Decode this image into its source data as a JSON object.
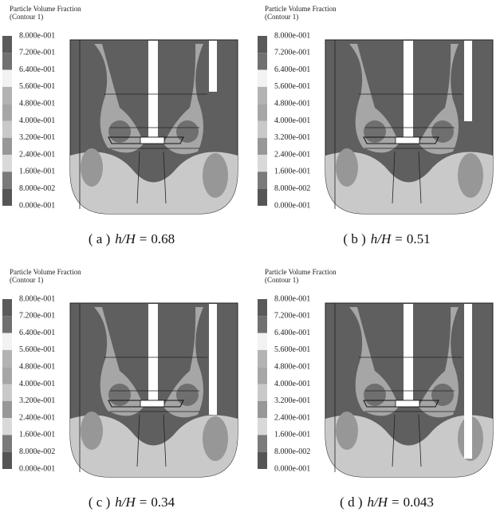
{
  "panels": [
    {
      "title": "Particle Volume Fraction",
      "subtitle": "(Contour 1)",
      "legend": [
        "8.000e-001",
        "7.200e-001",
        "6.400e-001",
        "5.600e-001",
        "4.800e-001",
        "4.000e-001",
        "3.200e-001",
        "2.400e-001",
        "1.600e-001",
        "8.000e-002",
        "0.000e-001"
      ],
      "caption": {
        "letter": "( a )",
        "variable": "h/H",
        "operator": "=",
        "value": 0.68
      }
    },
    {
      "title": "Particle Volume Fraction",
      "subtitle": "(Contour 1)",
      "legend": [
        "8.000e-001",
        "7.200e-001",
        "6.400e-001",
        "5.600e-001",
        "4.800e-001",
        "4.000e-001",
        "3.200e-001",
        "2.400e-001",
        "1.600e-001",
        "8.000e-002",
        "0.000e-001"
      ],
      "caption": {
        "letter": "( b )",
        "variable": "h/H",
        "operator": "=",
        "value": 0.51
      }
    },
    {
      "title": "Particle Volume Fraction",
      "subtitle": "(Contour 1)",
      "legend": [
        "8.000e-001",
        "7.200e-001",
        "6.400e-001",
        "5.600e-001",
        "4.800e-001",
        "4.000e-001",
        "3.200e-001",
        "2.400e-001",
        "1.600e-001",
        "8.000e-002",
        "0.000e-001"
      ],
      "caption": {
        "letter": "( c )",
        "variable": "h/H",
        "operator": "=",
        "value": 0.34
      }
    },
    {
      "title": "Particle Volume Fraction",
      "subtitle": "(Contour 1)",
      "legend": [
        "8.000e-001",
        "7.200e-001",
        "6.400e-001",
        "5.600e-001",
        "4.800e-001",
        "4.000e-001",
        "3.200e-001",
        "2.400e-001",
        "1.600e-001",
        "8.000e-002",
        "0.000e-001"
      ],
      "caption": {
        "letter": "( d )",
        "variable": "h/H",
        "operator": "=",
        "value": 0.043
      }
    }
  ]
}
